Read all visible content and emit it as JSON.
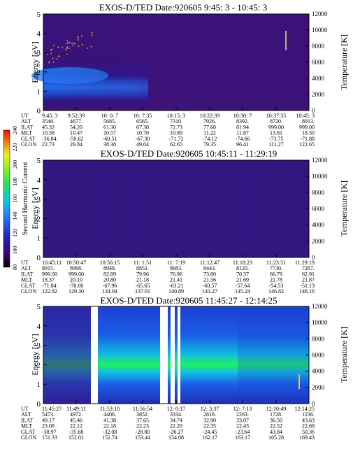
{
  "colorbar": {
    "label": "Second Harmonic Current",
    "ticks": [
      "80",
      "100",
      "120",
      "140",
      "160",
      "180",
      "200",
      "220",
      "240"
    ]
  },
  "chart_data": [
    {
      "type": "heatmap",
      "title": "EXOS-D/TED   Date:920605  9:45: 3 - 10:45: 3",
      "ylabel": "Energy [eV]",
      "y2label": "Temperature [K]",
      "ylim": [
        0,
        5
      ],
      "y2lim": [
        0,
        12000
      ],
      "yticks": [
        "0",
        "1",
        "2",
        "3",
        "4",
        "5"
      ],
      "y2ticks": [
        "0",
        "2000",
        "4000",
        "6000",
        "8000",
        "10000",
        "12000"
      ],
      "table_rows": [
        "UT",
        "ALT",
        "ILAT",
        "MLT",
        "GLAT",
        "GLON"
      ],
      "table_cols": [
        [
          "9:45: 3",
          "3546.",
          "45.32",
          "10.38",
          "-36.84",
          "22.73"
        ],
        [
          "9:52:39",
          "4677.",
          "54.20",
          "10.47",
          "-50.62",
          "29.84"
        ],
        [
          "10: 0: 7",
          "5685.",
          "61.30",
          "10.57",
          "-60.51",
          "38.38"
        ],
        [
          "10: 7:35",
          "6565.",
          "67.38",
          "10.70",
          "-67.30",
          "49.04"
        ],
        [
          "10:15: 3",
          "7310.",
          "72.73",
          "10.89",
          "-71.72",
          "62.65"
        ],
        [
          "10:22:39",
          "7926.",
          "77.60",
          "11.22",
          "-74.12",
          "79.35"
        ],
        [
          "10:30: 7",
          "8392.",
          "81.94",
          "11.87",
          "-74.66",
          "96.41"
        ],
        [
          "10:37:35",
          "8720.",
          "999.00",
          "13.81",
          "-73.75",
          "111.27"
        ],
        [
          "10:45: 3",
          "8913.",
          "999.00",
          "18.30",
          "-71.88",
          "122.65"
        ]
      ]
    },
    {
      "type": "heatmap",
      "title": "EXOS-D/TED   Date:920605  10:45:11 - 11:29:19",
      "ylabel": "Energy [eV]",
      "y2label": "Temperature [K]",
      "ylim": [
        0,
        5
      ],
      "y2lim": [
        0,
        12000
      ],
      "yticks": [
        "0",
        "1",
        "2",
        "3",
        "4",
        "5"
      ],
      "y2ticks": [
        "0",
        "2000",
        "4000",
        "6000",
        "8000",
        "10000",
        "12000"
      ],
      "table_rows": [
        "UT",
        "ALT",
        "ILAT",
        "MLT",
        "GLAT",
        "GLON"
      ],
      "table_cols": [
        [
          "10:45:11",
          "8915.",
          "999.00",
          "18.37",
          "-71.84",
          "122.82"
        ],
        [
          "10:50:47",
          "8968.",
          "999.00",
          "20.10",
          "-70.00",
          "129.30"
        ],
        [
          "10:56:15",
          "8948.",
          "82.89",
          "20.80",
          "-67.96",
          "134.04"
        ],
        [
          "11: 1:51",
          "8851.",
          "79.96",
          "21.18",
          "-65.65",
          "137.91"
        ],
        [
          "11: 7:19",
          "8683.",
          "76.96",
          "21.41",
          "-63.21",
          "140.89"
        ],
        [
          "11:12:47",
          "8443.",
          "73.80",
          "21.56",
          "-60.57",
          "143.27"
        ],
        [
          "11:18:23",
          "8120.",
          "70.37",
          "21.69",
          "-57.64",
          "145.24"
        ],
        [
          "11:23:51",
          "7730.",
          "66.79",
          "21.78",
          "-54.53",
          "146.82"
        ],
        [
          "11:29:19",
          "7267.",
          "62.91",
          "21.87",
          "-51.13",
          "148.16"
        ]
      ]
    },
    {
      "type": "heatmap",
      "title": "EXOS-D/TED   Date:920605  11:45:27 - 12:14:25",
      "ylabel": "Energy [eV]",
      "y2label": "Temperature [K]",
      "ylim": [
        0,
        5
      ],
      "y2lim": [
        0,
        12000
      ],
      "yticks": [
        "0",
        "1",
        "2",
        "3",
        "4",
        "5"
      ],
      "y2ticks": [
        "0",
        "2000",
        "4000",
        "6000",
        "8000",
        "10000",
        "12000"
      ],
      "table_rows": [
        "UT",
        "ALT",
        "ILAT",
        "MLT",
        "GLAT",
        "GLON"
      ],
      "table_cols": [
        [
          "11:45:27",
          "5473.",
          "49.17",
          "23.08",
          "-38.97",
          "151.33"
        ],
        [
          "11:49:11",
          "4972.",
          "45.46",
          "22.12",
          "-35.68",
          "152.01"
        ],
        [
          "11:53:10",
          "4406.",
          "41.38",
          "22.18",
          "-32.08",
          "152.74"
        ],
        [
          "11:56:54",
          "3852.",
          "37.65",
          "22.23",
          "-28.80",
          "153.44"
        ],
        [
          "12: 0:17",
          "3334.",
          "34.74",
          "22.29",
          "-26.27",
          "154.08"
        ],
        [
          "12: 3:37",
          "2818.",
          "32.90",
          "22.35",
          "-24.45",
          "162.17"
        ],
        [
          "12: 7:13",
          "2263.",
          "33.07",
          "22.43",
          "-23.64",
          "163.17"
        ],
        [
          "12:10:49",
          "1728.",
          "36.50",
          "22.52",
          "43.84",
          "165.28"
        ],
        [
          "12:14:25",
          "1236.",
          "43.63",
          "22.69",
          "50.36",
          "169.43"
        ]
      ]
    }
  ]
}
